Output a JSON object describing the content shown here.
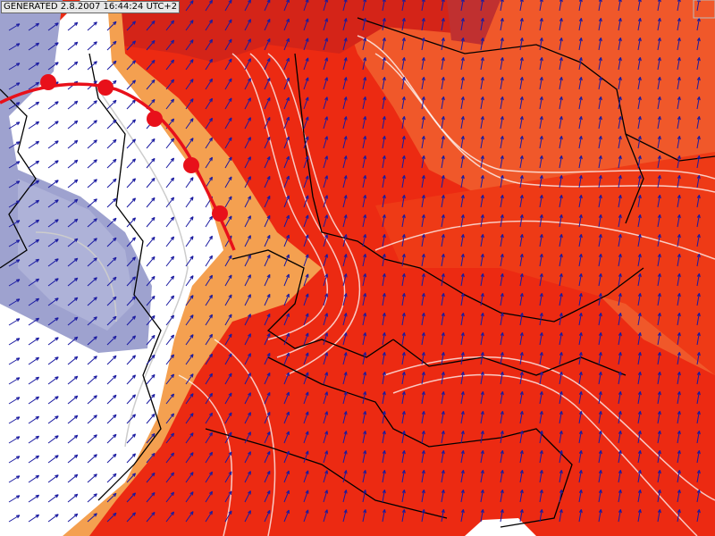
{
  "header": {
    "label": "GENERATED 2.8.2007 16:44:24 UTC+2"
  }
}
